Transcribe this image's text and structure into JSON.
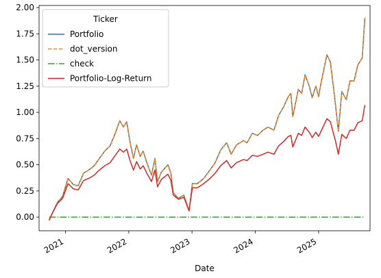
{
  "chart_data": {
    "type": "line",
    "xlabel": "Date",
    "ylabel": "",
    "xlim": [
      "2020-08-01",
      "2025-10-25"
    ],
    "ylim": [
      -0.13,
      2.02
    ],
    "x_ticks": [
      "2021-01-01",
      "2022-01-01",
      "2023-01-01",
      "2024-01-01",
      "2025-01-01"
    ],
    "x_tick_labels": [
      "2021",
      "2022",
      "2023",
      "2024",
      "2025"
    ],
    "y_ticks": [
      0.0,
      0.25,
      0.5,
      0.75,
      1.0,
      1.25,
      1.5,
      1.75,
      2.0
    ],
    "y_tick_labels": [
      "0.00",
      "0.25",
      "0.50",
      "0.75",
      "1.00",
      "1.25",
      "1.50",
      "1.75",
      "2.00"
    ],
    "grid": false,
    "legend": {
      "title": "Ticker",
      "placement": "top-left"
    },
    "series": [
      {
        "name": "Portfolio",
        "color": "#1f77b4",
        "dash": "solid",
        "x": [
          "2020-09-28",
          "2020-10-20",
          "2020-11-15",
          "2020-12-15",
          "2021-01-15",
          "2021-02-15",
          "2021-03-15",
          "2021-04-15",
          "2021-05-15",
          "2021-06-15",
          "2021-07-15",
          "2021-08-15",
          "2021-09-15",
          "2021-10-15",
          "2021-11-10",
          "2021-12-01",
          "2021-12-20",
          "2022-01-10",
          "2022-01-28",
          "2022-02-15",
          "2022-03-08",
          "2022-03-25",
          "2022-04-15",
          "2022-05-12",
          "2022-06-01",
          "2022-06-16",
          "2022-07-08",
          "2022-08-15",
          "2022-09-01",
          "2022-09-15",
          "2022-10-15",
          "2022-11-15",
          "2022-12-15",
          "2023-01-03",
          "2023-02-01",
          "2023-03-10",
          "2023-04-15",
          "2023-05-15",
          "2023-06-15",
          "2023-07-20",
          "2023-08-15",
          "2023-09-15",
          "2023-10-26",
          "2023-11-15",
          "2023-12-15",
          "2024-01-15",
          "2024-02-15",
          "2024-03-15",
          "2024-04-18",
          "2024-05-15",
          "2024-06-12",
          "2024-07-10",
          "2024-07-25",
          "2024-08-05",
          "2024-08-15",
          "2024-09-06",
          "2024-09-25",
          "2024-10-15",
          "2024-11-08",
          "2024-11-25",
          "2024-12-16",
          "2025-01-01",
          "2025-01-15",
          "2025-02-18",
          "2025-03-10",
          "2025-04-08",
          "2025-04-25",
          "2025-05-15",
          "2025-06-10",
          "2025-07-01",
          "2025-07-25",
          "2025-08-15",
          "2025-09-10",
          "2025-09-25"
        ],
        "values": [
          -0.03,
          0.05,
          0.14,
          0.2,
          0.37,
          0.31,
          0.3,
          0.42,
          0.45,
          0.49,
          0.56,
          0.63,
          0.68,
          0.8,
          0.92,
          0.86,
          0.91,
          0.7,
          0.56,
          0.69,
          0.58,
          0.63,
          0.52,
          0.4,
          0.56,
          0.34,
          0.43,
          0.5,
          0.42,
          0.23,
          0.18,
          0.21,
          0.06,
          0.32,
          0.32,
          0.37,
          0.45,
          0.52,
          0.64,
          0.71,
          0.6,
          0.69,
          0.73,
          0.71,
          0.8,
          0.78,
          0.83,
          0.86,
          0.83,
          0.97,
          1.05,
          1.15,
          1.18,
          0.96,
          1.04,
          1.22,
          1.18,
          1.36,
          1.25,
          1.14,
          1.25,
          1.15,
          1.28,
          1.55,
          1.48,
          1.08,
          0.82,
          1.2,
          1.12,
          1.3,
          1.3,
          1.45,
          1.52,
          1.9
        ]
      },
      {
        "name": "dot_version",
        "color": "#ff7f0e",
        "dash": "dashed",
        "x": [
          "2020-09-28",
          "2020-10-20",
          "2020-11-15",
          "2020-12-15",
          "2021-01-15",
          "2021-02-15",
          "2021-03-15",
          "2021-04-15",
          "2021-05-15",
          "2021-06-15",
          "2021-07-15",
          "2021-08-15",
          "2021-09-15",
          "2021-10-15",
          "2021-11-10",
          "2021-12-01",
          "2021-12-20",
          "2022-01-10",
          "2022-01-28",
          "2022-02-15",
          "2022-03-08",
          "2022-03-25",
          "2022-04-15",
          "2022-05-12",
          "2022-06-01",
          "2022-06-16",
          "2022-07-08",
          "2022-08-15",
          "2022-09-01",
          "2022-09-15",
          "2022-10-15",
          "2022-11-15",
          "2022-12-15",
          "2023-01-03",
          "2023-02-01",
          "2023-03-10",
          "2023-04-15",
          "2023-05-15",
          "2023-06-15",
          "2023-07-20",
          "2023-08-15",
          "2023-09-15",
          "2023-10-26",
          "2023-11-15",
          "2023-12-15",
          "2024-01-15",
          "2024-02-15",
          "2024-03-15",
          "2024-04-18",
          "2024-05-15",
          "2024-06-12",
          "2024-07-10",
          "2024-07-25",
          "2024-08-05",
          "2024-08-15",
          "2024-09-06",
          "2024-09-25",
          "2024-10-15",
          "2024-11-08",
          "2024-11-25",
          "2024-12-16",
          "2025-01-01",
          "2025-01-15",
          "2025-02-18",
          "2025-03-10",
          "2025-04-08",
          "2025-04-25",
          "2025-05-15",
          "2025-06-10",
          "2025-07-01",
          "2025-07-25",
          "2025-08-15",
          "2025-09-10",
          "2025-09-25"
        ],
        "values": [
          -0.03,
          0.05,
          0.14,
          0.2,
          0.37,
          0.31,
          0.3,
          0.42,
          0.45,
          0.49,
          0.56,
          0.63,
          0.68,
          0.8,
          0.92,
          0.86,
          0.91,
          0.7,
          0.56,
          0.69,
          0.58,
          0.63,
          0.52,
          0.4,
          0.56,
          0.34,
          0.43,
          0.5,
          0.42,
          0.23,
          0.18,
          0.21,
          0.06,
          0.32,
          0.32,
          0.37,
          0.45,
          0.52,
          0.64,
          0.71,
          0.6,
          0.69,
          0.73,
          0.71,
          0.8,
          0.78,
          0.83,
          0.86,
          0.83,
          0.97,
          1.05,
          1.15,
          1.18,
          0.96,
          1.04,
          1.22,
          1.18,
          1.36,
          1.25,
          1.14,
          1.25,
          1.15,
          1.28,
          1.55,
          1.48,
          1.08,
          0.82,
          1.2,
          1.12,
          1.3,
          1.3,
          1.45,
          1.52,
          1.9
        ]
      },
      {
        "name": "check",
        "color": "#2ca02c",
        "dash": "dashdot",
        "x": [
          "2020-09-28",
          "2025-09-25"
        ],
        "values": [
          0.0,
          0.0
        ]
      },
      {
        "name": "Portfolio-Log-Return",
        "color": "#d62728",
        "dash": "solid",
        "x": [
          "2020-09-28",
          "2020-10-20",
          "2020-11-15",
          "2020-12-15",
          "2021-01-15",
          "2021-02-15",
          "2021-03-15",
          "2021-04-15",
          "2021-05-15",
          "2021-06-15",
          "2021-07-15",
          "2021-08-15",
          "2021-09-15",
          "2021-10-15",
          "2021-11-10",
          "2021-12-01",
          "2021-12-20",
          "2022-01-10",
          "2022-01-28",
          "2022-02-15",
          "2022-03-08",
          "2022-03-25",
          "2022-04-15",
          "2022-05-12",
          "2022-06-01",
          "2022-06-16",
          "2022-07-08",
          "2022-08-15",
          "2022-09-01",
          "2022-09-15",
          "2022-10-15",
          "2022-11-15",
          "2022-12-15",
          "2023-01-03",
          "2023-02-01",
          "2023-03-10",
          "2023-04-15",
          "2023-05-15",
          "2023-06-15",
          "2023-07-20",
          "2023-08-15",
          "2023-09-15",
          "2023-10-26",
          "2023-11-15",
          "2023-12-15",
          "2024-01-15",
          "2024-02-15",
          "2024-03-15",
          "2024-04-18",
          "2024-05-15",
          "2024-06-12",
          "2024-07-10",
          "2024-07-25",
          "2024-08-05",
          "2024-08-15",
          "2024-09-06",
          "2024-09-25",
          "2024-10-15",
          "2024-11-08",
          "2024-11-25",
          "2024-12-16",
          "2025-01-01",
          "2025-01-15",
          "2025-02-18",
          "2025-03-10",
          "2025-04-08",
          "2025-04-25",
          "2025-05-15",
          "2025-06-10",
          "2025-07-01",
          "2025-07-25",
          "2025-08-15",
          "2025-09-10",
          "2025-09-25"
        ],
        "values": [
          -0.03,
          0.05,
          0.13,
          0.18,
          0.32,
          0.27,
          0.26,
          0.35,
          0.37,
          0.4,
          0.45,
          0.49,
          0.52,
          0.59,
          0.65,
          0.62,
          0.65,
          0.53,
          0.45,
          0.53,
          0.46,
          0.49,
          0.42,
          0.34,
          0.45,
          0.29,
          0.36,
          0.41,
          0.35,
          0.21,
          0.17,
          0.19,
          0.06,
          0.28,
          0.28,
          0.32,
          0.37,
          0.42,
          0.49,
          0.54,
          0.47,
          0.52,
          0.55,
          0.54,
          0.59,
          0.58,
          0.6,
          0.62,
          0.6,
          0.68,
          0.72,
          0.77,
          0.78,
          0.67,
          0.71,
          0.8,
          0.78,
          0.86,
          0.81,
          0.76,
          0.81,
          0.77,
          0.82,
          0.94,
          0.91,
          0.73,
          0.6,
          0.79,
          0.75,
          0.83,
          0.83,
          0.9,
          0.92,
          1.07
        ]
      }
    ]
  }
}
